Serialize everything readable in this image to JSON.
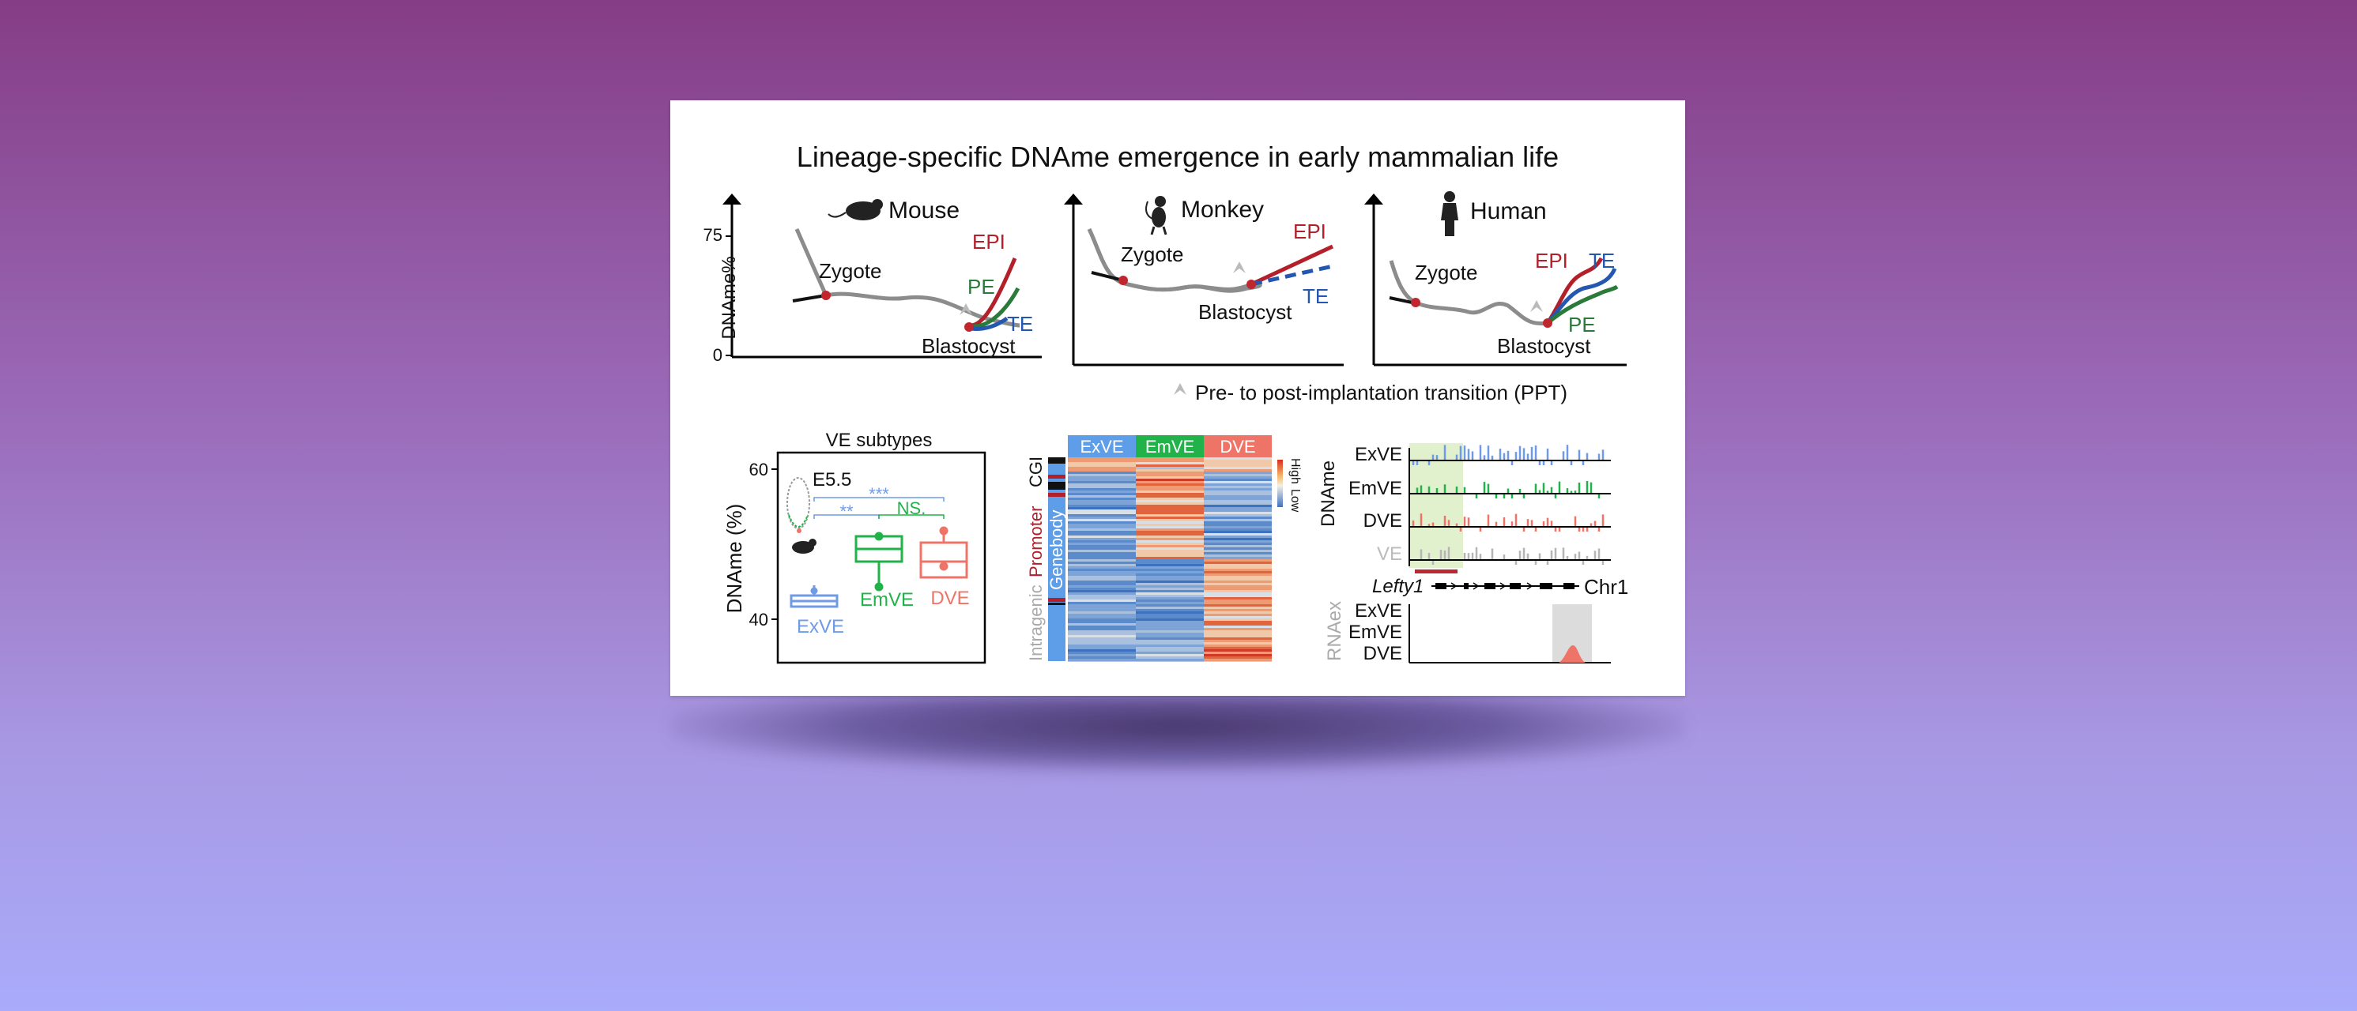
{
  "title": "Lineage-specific DNAme emergence in early mammalian life",
  "species_panels": {
    "mouse": {
      "name": "Mouse",
      "zygote": "Zygote",
      "blastocyst": "Blastocyst",
      "epi": "EPI",
      "pe": "PE",
      "te": "TE"
    },
    "monkey": {
      "name": "Monkey",
      "zygote": "Zygote",
      "blastocyst": "Blastocyst",
      "epi": "EPI",
      "te": "TE"
    },
    "human": {
      "name": "Human",
      "zygote": "Zygote",
      "blastocyst": "Blastocyst",
      "epi": "EPI",
      "te": "TE",
      "pe": "PE"
    },
    "ylabel": "DNAme%",
    "yticks": [
      "75",
      "0"
    ]
  },
  "ppt_legend": "Pre- to post-implantation transition (PPT)",
  "boxplot": {
    "title": "VE subtypes",
    "ylabel": "DNAme (%)",
    "yticks": [
      "60",
      "40"
    ],
    "stage": "E5.5",
    "groups": [
      "ExVE",
      "EmVE",
      "DVE"
    ],
    "sig": [
      "***",
      "**",
      "NS."
    ]
  },
  "heatmap": {
    "columns": [
      "ExVE",
      "EmVE",
      "DVE"
    ],
    "row_labels": {
      "cgi": "CGI",
      "promoter": "Promoter",
      "genebody": "Genebody",
      "intragenic": "Intragenic"
    },
    "scale_high": "High",
    "scale_low": "Low"
  },
  "track": {
    "dname_label": "DNAme",
    "rows": [
      "ExVE",
      "EmVE",
      "DVE",
      "VE"
    ],
    "gene": "Lefty1",
    "chrom": "Chr1",
    "rnaex_label": "RNAex",
    "rna_rows": [
      "ExVE",
      "EmVE",
      "DVE"
    ]
  },
  "colors": {
    "epi": "#b3202a",
    "pe": "#2a7a3a",
    "te": "#2457b0",
    "exve": "#6f9be6",
    "emve": "#21b24a",
    "dve": "#ef7468",
    "gray": "#8c8c8c"
  }
}
